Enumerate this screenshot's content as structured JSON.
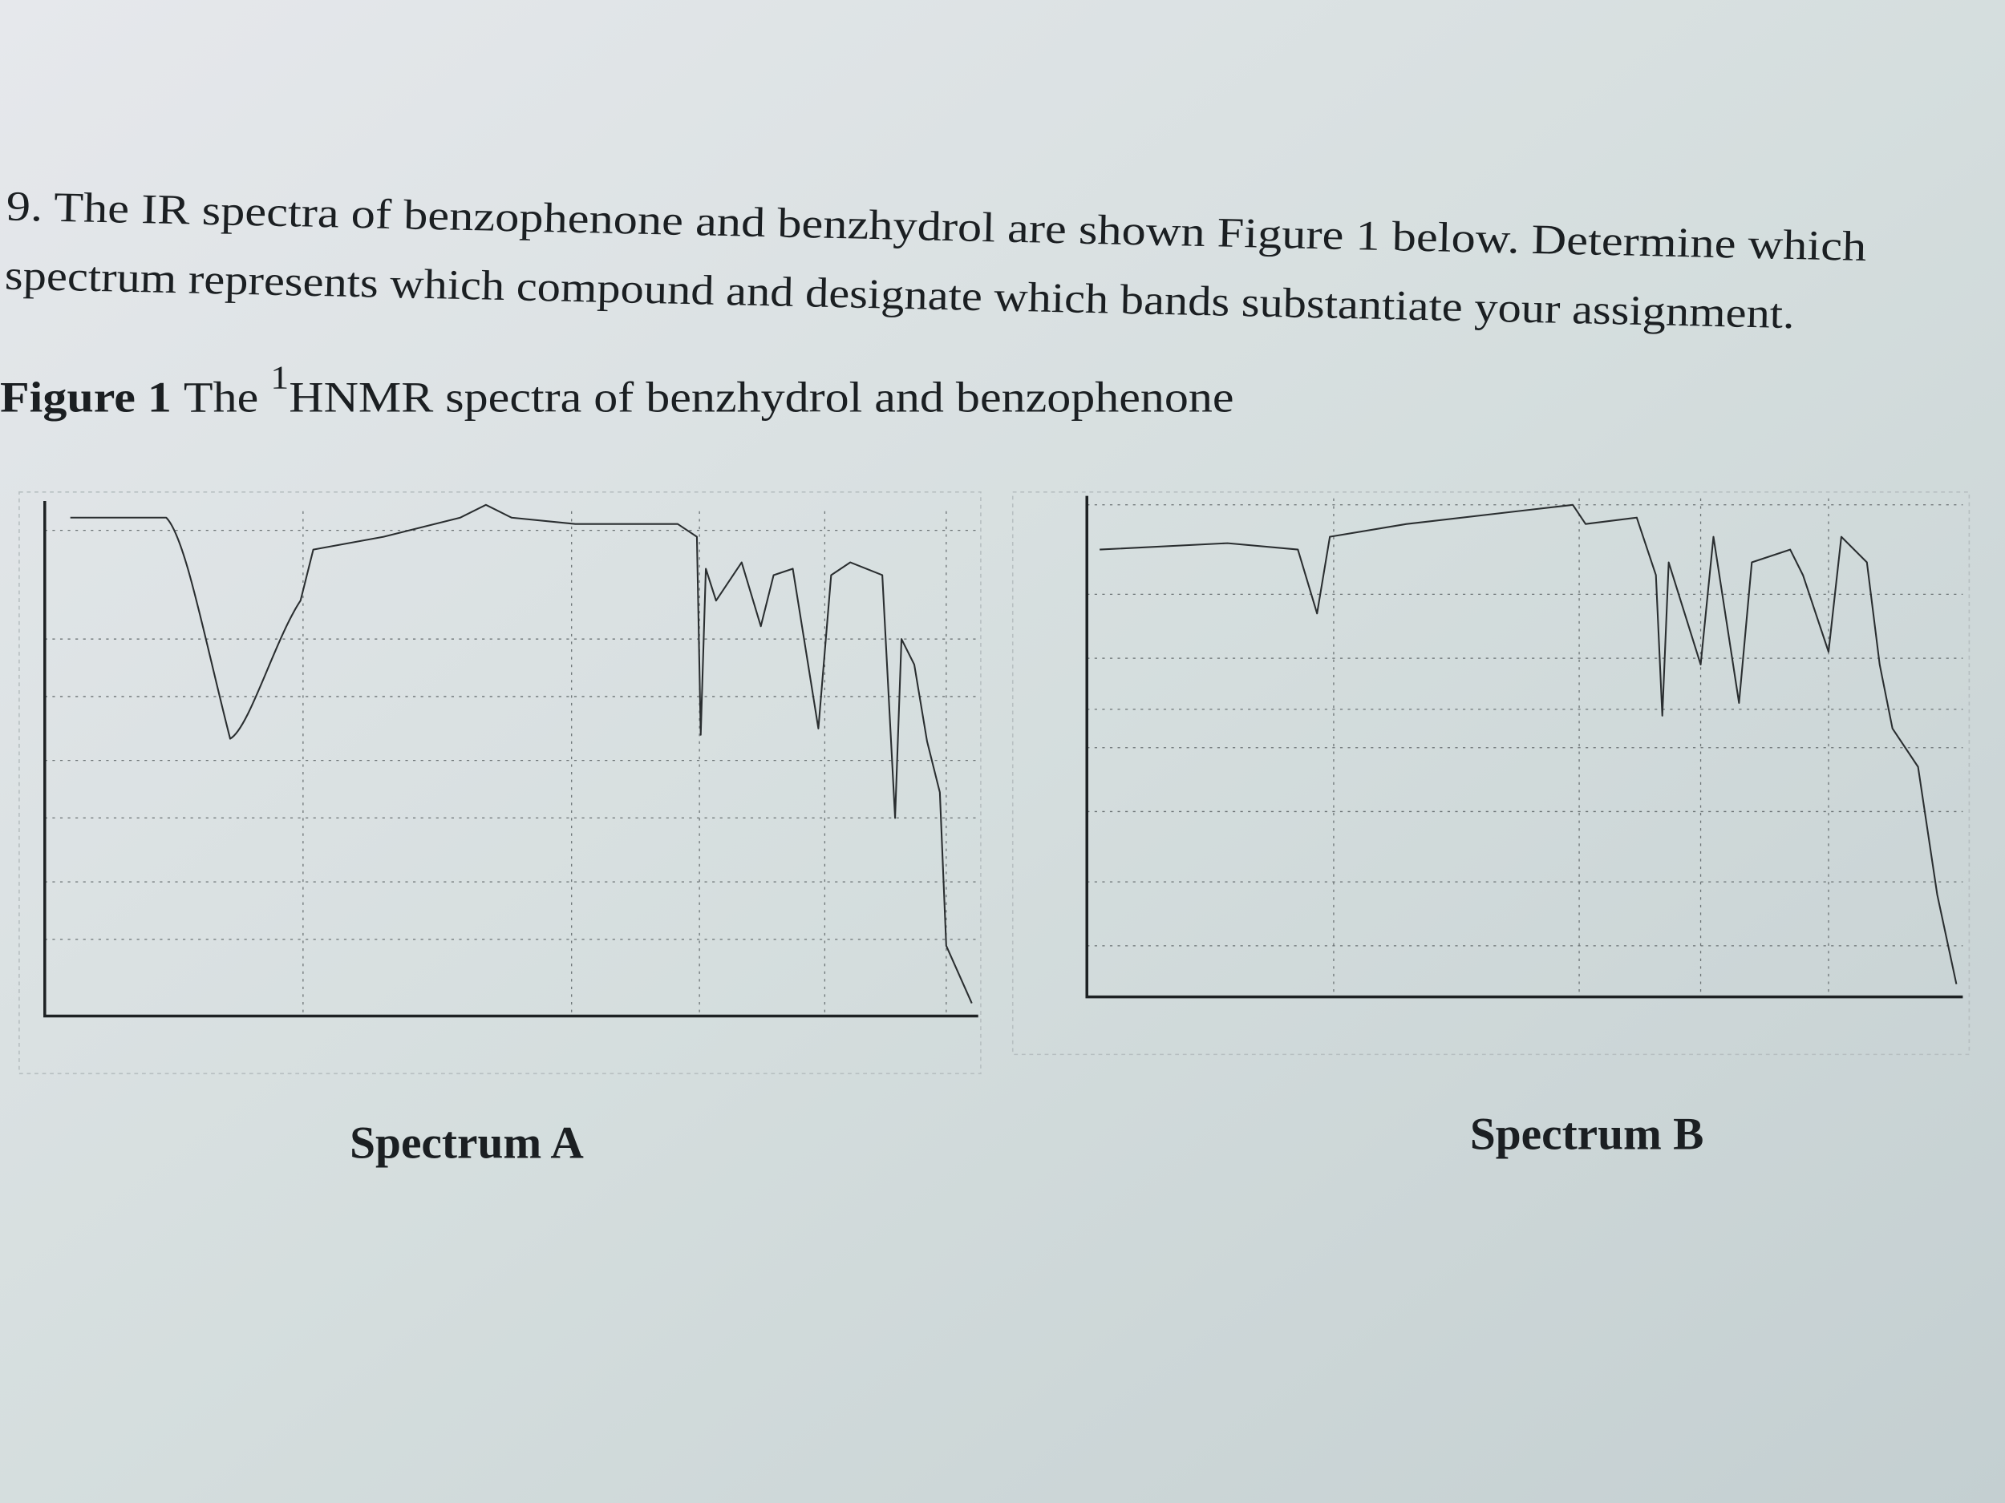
{
  "question": {
    "lines": [
      "9. The IR spectra of benzophenone and benzhydrol are shown Figure 1 below. Determine which",
      "spectrum represents which compound and designate which bands substantiate your assignment."
    ]
  },
  "figure": {
    "label": "Figure 1",
    "caption_start": "The",
    "superscript": "1",
    "caption_end": "HNMR spectra of benzhydrol and benzophenone"
  },
  "spectra": [
    {
      "label": "Spectrum A"
    },
    {
      "label": "Spectrum B"
    }
  ]
}
